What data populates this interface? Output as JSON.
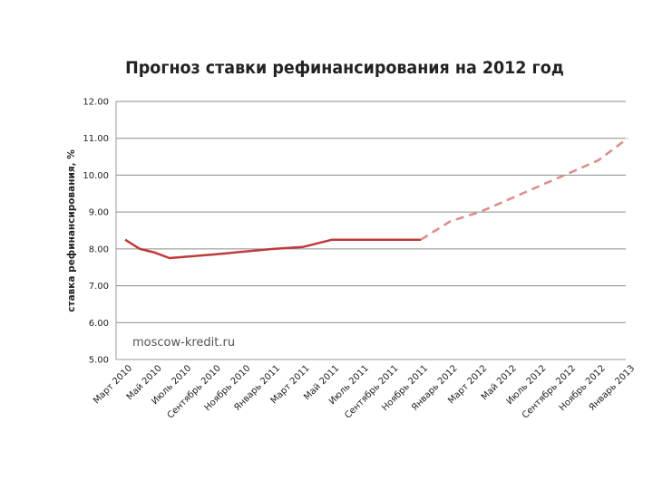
{
  "chart_data": {
    "type": "line",
    "title": "Прогноз ставки рефинансирования на 2012 год",
    "ylabel": "ставка рефинансирования, %",
    "xlabel": "",
    "ylim": [
      5.0,
      12.0
    ],
    "yticks": [
      "5.00",
      "6.00",
      "7.00",
      "8.00",
      "9.00",
      "10.00",
      "11.00",
      "12.00"
    ],
    "ytick_values": [
      5,
      6,
      7,
      8,
      9,
      10,
      11,
      12
    ],
    "categories": [
      "Март 2010",
      "Май 2010",
      "Июль 2010",
      "Сентябрь 2010",
      "Ноябрь 2010",
      "Январь 2011",
      "Март 2011",
      "Май 2011",
      "Июль 2011",
      "Сентябрь 2011",
      "Ноябрь 2011",
      "Январь 2012",
      "Март 2012",
      "Май 2012",
      "Июль 2012",
      "Сентябрь 2012",
      "Ноябрь 2012",
      "Январь 2013"
    ],
    "series": [
      {
        "style": "solid",
        "color": "#c0393b",
        "points": [
          {
            "x": 0.0,
            "y": 8.25
          },
          {
            "x": 0.5,
            "y": 8.0
          },
          {
            "x": 1.0,
            "y": 7.9
          },
          {
            "x": 1.5,
            "y": 7.75
          },
          {
            "x": 3.0,
            "y": 7.85
          },
          {
            "x": 5.0,
            "y": 8.0
          },
          {
            "x": 6.0,
            "y": 8.05
          },
          {
            "x": 7.0,
            "y": 8.25
          },
          {
            "x": 8.0,
            "y": 8.25
          },
          {
            "x": 9.0,
            "y": 8.25
          },
          {
            "x": 10.0,
            "y": 8.25
          }
        ]
      },
      {
        "style": "dashed",
        "color": "#e08a86",
        "points": [
          {
            "x": 10.0,
            "y": 8.25
          },
          {
            "x": 11.0,
            "y": 8.75
          },
          {
            "x": 12.0,
            "y": 9.0
          },
          {
            "x": 13.0,
            "y": 9.35
          },
          {
            "x": 14.0,
            "y": 9.7
          },
          {
            "x": 15.0,
            "y": 10.05
          },
          {
            "x": 16.0,
            "y": 10.4
          },
          {
            "x": 17.0,
            "y": 11.0
          }
        ]
      }
    ],
    "grid": true,
    "legend": "none",
    "watermark": "moscow-kredit.ru"
  }
}
